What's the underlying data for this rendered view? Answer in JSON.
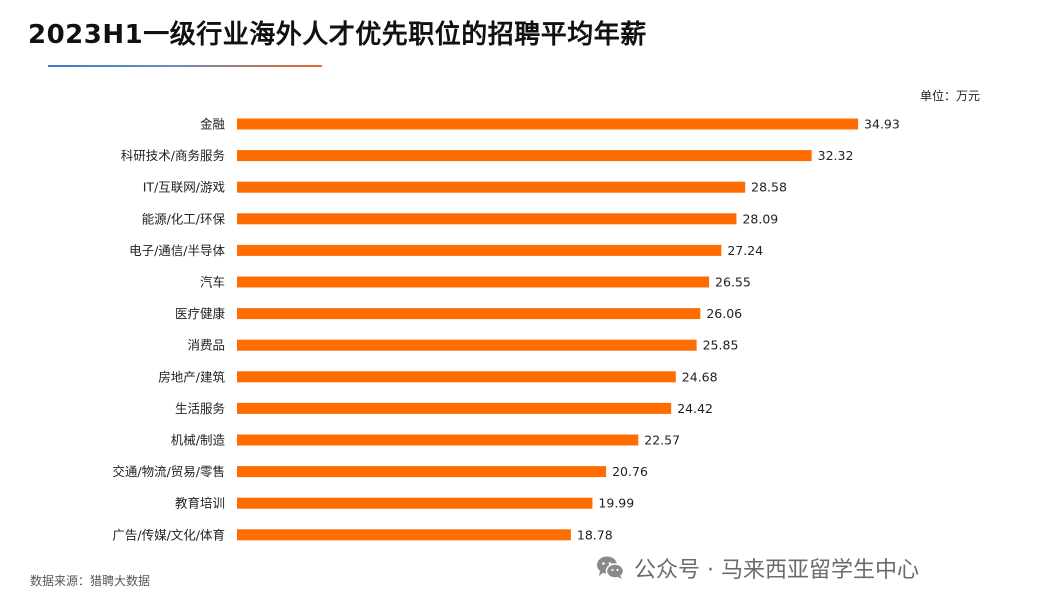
{
  "title": "2023H1一级行业海外人才优先职位的招聘平均年薪",
  "unit_label": "单位：万元",
  "source": "数据来源：猎聘大数据",
  "watermark": {
    "icon": "wechat-icon",
    "text": "公众号 · 马来西亚留学生中心"
  },
  "colors": {
    "bar": "#ff6d00",
    "accent_line_start": "#3d7cc9",
    "accent_line_end": "#e36b2c"
  },
  "chart_data": {
    "type": "bar",
    "orientation": "horizontal",
    "title": "2023H1一级行业海外人才优先职位的招聘平均年薪",
    "xlabel": "",
    "ylabel": "",
    "unit": "万元",
    "xlim": [
      0,
      36.5
    ],
    "grid": false,
    "categories": [
      "金融",
      "科研技术/商务服务",
      "IT/互联网/游戏",
      "能源/化工/环保",
      "电子/通信/半导体",
      "汽车",
      "医疗健康",
      "消费品",
      "房地产/建筑",
      "生活服务",
      "机械/制造",
      "交通/物流/贸易/零售",
      "教育培训",
      "广告/传媒/文化/体育"
    ],
    "values": [
      34.93,
      32.32,
      28.58,
      28.09,
      27.24,
      26.55,
      26.06,
      25.85,
      24.68,
      24.42,
      22.57,
      20.76,
      19.99,
      18.78
    ],
    "labels": [
      "34.93",
      "32.32",
      "28.58",
      "28.09",
      "27.24",
      "26.55",
      "26.06",
      "25.85",
      "24.68",
      "24.42",
      "22.57",
      "20.76",
      "19.99",
      "18.78"
    ]
  }
}
